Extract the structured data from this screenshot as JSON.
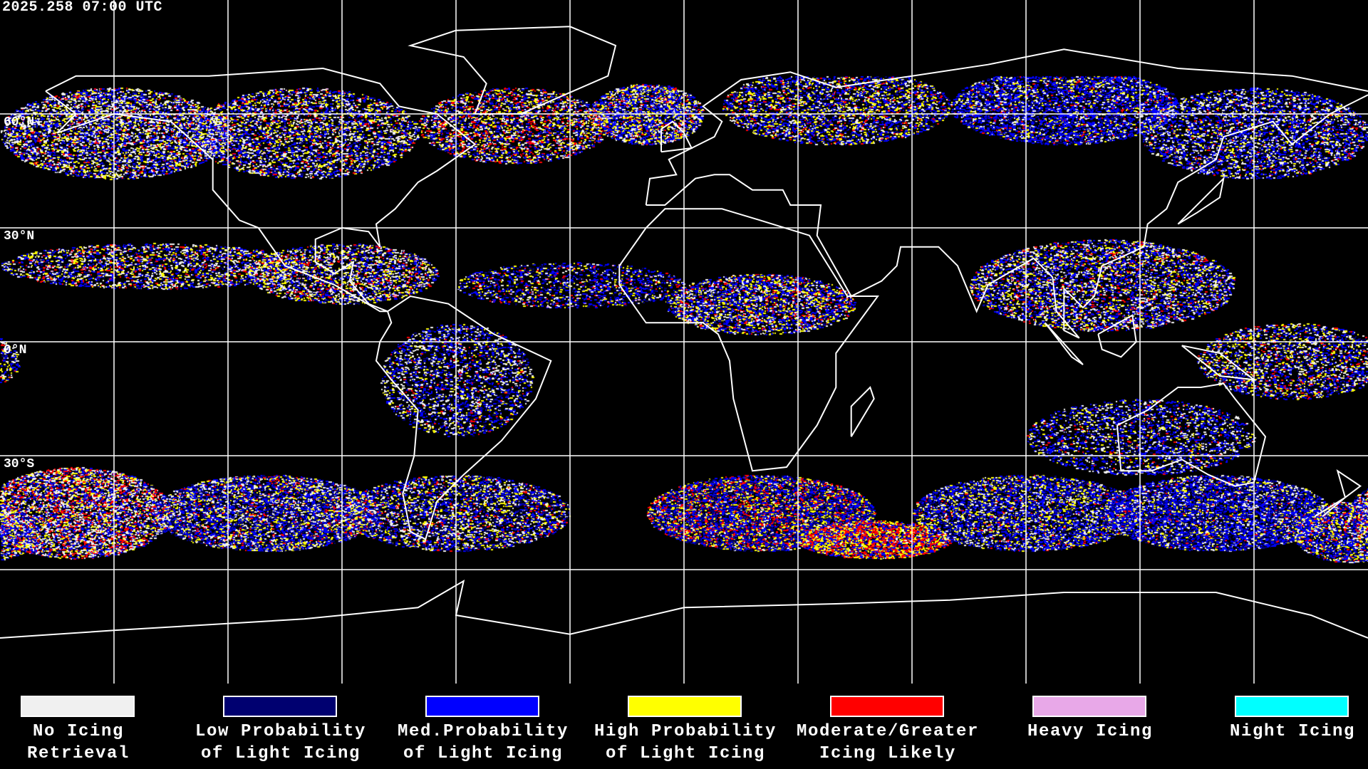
{
  "header": {
    "timestamp": "2025.258 07:00 UTC"
  },
  "map": {
    "projection": "equirectangular",
    "gridline_color": "#ffffff",
    "coastline_color": "#ffffff",
    "background": "#000000",
    "lat_labels": [
      "60°N",
      "30°N",
      "0°N",
      "30°S"
    ]
  },
  "legend": [
    {
      "line1": "No Icing",
      "line2": "Retrieval",
      "color": "#f0f0f0"
    },
    {
      "line1": "Low Probability",
      "line2": "of Light Icing",
      "color": "#000070"
    },
    {
      "line1": "Med.Probability",
      "line2": "of Light Icing",
      "color": "#0000ff"
    },
    {
      "line1": "High Probability",
      "line2": "of Light Icing",
      "color": "#ffff00"
    },
    {
      "line1": "Moderate/Greater",
      "line2": "Icing Likely",
      "color": "#ff0000"
    },
    {
      "line1": "Heavy Icing",
      "line2": "",
      "color": "#e8a8e8"
    },
    {
      "line1": "Night Icing",
      "line2": "",
      "color": "#00ffff"
    }
  ]
}
